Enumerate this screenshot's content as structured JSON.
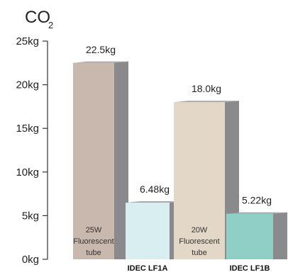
{
  "chart_data": {
    "type": "bar",
    "ylabel": "CO",
    "ylabel_subscript": "2",
    "ylim": [
      0,
      25
    ],
    "yticks": [
      0,
      5,
      10,
      15,
      20,
      25
    ],
    "ytick_labels": [
      "0kg",
      "5kg",
      "10kg",
      "15kg",
      "20kg",
      "25kg"
    ],
    "categories": [
      "25W Fluorescent tube",
      "IDEC LF1A",
      "20W Fluorescent tube",
      "IDEC LF1B"
    ],
    "values": [
      22.5,
      6.48,
      18.0,
      5.22
    ],
    "value_labels": [
      "22.5kg",
      "6.48kg",
      "18.0kg",
      "5.22kg"
    ],
    "bars": [
      {
        "inner_label": [
          "25W",
          "Fluorescent",
          "tube"
        ],
        "bottom_label": "",
        "front_color": "#c9b8ae",
        "side_color": "#8a8a8c",
        "top_color": "#a5a5a7"
      },
      {
        "inner_label": [],
        "bottom_label": "IDEC LF1A",
        "front_color": "#d9eef1",
        "side_color": "#8a8a8c",
        "top_color": "#a5a5a7"
      },
      {
        "inner_label": [
          "20W",
          "Fluorescent",
          "tube"
        ],
        "bottom_label": "",
        "front_color": "#e3d8c8",
        "side_color": "#8a8a8c",
        "top_color": "#a5a5a7"
      },
      {
        "inner_label": [],
        "bottom_label": "IDEC LF1B",
        "front_color": "#8fcfc6",
        "side_color": "#8a8a8c",
        "top_color": "#a5a5a7"
      }
    ],
    "grid": false,
    "legend": "none"
  }
}
